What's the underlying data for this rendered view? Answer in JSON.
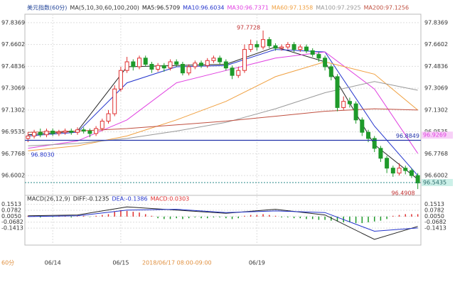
{
  "chart_data": [
    {
      "type": "candlestick",
      "title": "美元指数(60分)",
      "indicator_label": "MA(5,10,30,60,100,200)",
      "up_color": "#e03030",
      "down_color": "#1f9a2a",
      "categories": [
        null,
        null,
        null,
        null,
        "06/14",
        null,
        null,
        null,
        null,
        null,
        null,
        null,
        null,
        null,
        null,
        "06/15",
        null,
        null,
        null,
        null,
        null,
        null,
        null,
        null,
        null,
        null,
        null,
        null,
        null,
        null,
        null,
        null,
        null,
        null,
        null,
        null,
        null,
        "06/19",
        null,
        null,
        null,
        null,
        null,
        null,
        null,
        null,
        null,
        null,
        null,
        null,
        null,
        null,
        null,
        null,
        null,
        null,
        null,
        null,
        null,
        null,
        null,
        null,
        null,
        null
      ],
      "open": [
        96.9,
        96.92,
        96.95,
        96.93,
        96.96,
        96.94,
        96.95,
        96.96,
        96.95,
        96.97,
        96.96,
        96.94,
        96.98,
        97.04,
        97.1,
        97.3,
        97.45,
        97.52,
        97.48,
        97.55,
        97.5,
        97.46,
        97.49,
        97.47,
        97.52,
        97.5,
        97.43,
        97.48,
        97.51,
        97.49,
        97.53,
        97.55,
        97.52,
        97.47,
        97.41,
        97.45,
        97.62,
        97.66,
        97.64,
        97.7,
        97.65,
        97.63,
        97.64,
        97.66,
        97.62,
        97.64,
        97.61,
        97.58,
        97.55,
        97.48,
        97.4,
        97.15,
        97.2,
        97.18,
        97.05,
        96.95,
        96.9,
        96.82,
        96.74,
        96.66,
        96.62,
        96.66,
        96.64,
        96.6
      ],
      "high": [
        96.95,
        96.97,
        96.98,
        96.98,
        96.98,
        96.97,
        96.98,
        96.98,
        96.99,
        96.99,
        96.98,
        97.0,
        97.06,
        97.13,
        97.33,
        97.48,
        97.56,
        97.54,
        97.57,
        97.57,
        97.52,
        97.51,
        97.51,
        97.54,
        97.54,
        97.52,
        97.5,
        97.53,
        97.53,
        97.55,
        97.57,
        97.57,
        97.54,
        97.49,
        97.48,
        97.66,
        97.7,
        97.69,
        97.7728,
        97.72,
        97.67,
        97.66,
        97.68,
        97.68,
        97.66,
        97.66,
        97.63,
        97.6,
        97.57,
        97.5,
        97.42,
        97.24,
        97.23,
        97.2,
        97.07,
        96.97,
        96.92,
        96.84,
        96.76,
        96.68,
        96.7,
        96.68,
        96.66,
        96.62
      ],
      "low": [
        96.87,
        96.9,
        96.91,
        96.91,
        96.92,
        96.92,
        96.93,
        96.93,
        96.93,
        96.94,
        96.91,
        96.92,
        96.96,
        97.02,
        97.08,
        97.28,
        97.43,
        97.45,
        97.46,
        97.48,
        97.43,
        97.44,
        97.44,
        97.45,
        97.48,
        97.41,
        97.41,
        97.46,
        97.47,
        97.47,
        97.51,
        97.5,
        97.45,
        97.38,
        97.39,
        97.43,
        97.6,
        97.61,
        97.62,
        97.63,
        97.61,
        97.61,
        97.62,
        97.6,
        97.6,
        97.59,
        97.56,
        97.52,
        97.45,
        97.37,
        97.12,
        97.13,
        97.15,
        97.02,
        96.92,
        96.87,
        96.79,
        96.71,
        96.62,
        96.59,
        96.6,
        96.61,
        96.58,
        96.4908
      ],
      "close": [
        96.92,
        96.95,
        96.93,
        96.96,
        96.94,
        96.95,
        96.96,
        96.95,
        96.97,
        96.96,
        96.94,
        96.98,
        97.04,
        97.1,
        97.3,
        97.45,
        97.52,
        97.48,
        97.55,
        97.5,
        97.46,
        97.49,
        97.47,
        97.52,
        97.5,
        97.43,
        97.48,
        97.51,
        97.49,
        97.53,
        97.55,
        97.52,
        97.47,
        97.41,
        97.45,
        97.62,
        97.66,
        97.64,
        97.7,
        97.65,
        97.63,
        97.64,
        97.66,
        97.62,
        97.64,
        97.61,
        97.58,
        97.55,
        97.48,
        97.4,
        97.15,
        97.2,
        97.18,
        97.05,
        96.95,
        96.9,
        96.82,
        96.74,
        96.66,
        96.62,
        96.66,
        96.64,
        96.6,
        96.54
      ],
      "series": [
        {
          "name": "MA5:96.5709",
          "color": "#222222",
          "x": [
            0,
            8,
            16,
            24,
            32,
            40,
            48,
            56,
            63
          ],
          "values": [
            96.93,
            96.96,
            97.48,
            97.49,
            97.5,
            97.64,
            97.52,
            96.85,
            96.57
          ]
        },
        {
          "name": "MA10:96.6034",
          "color": "#2233cc",
          "x": [
            0,
            8,
            16,
            24,
            32,
            40,
            48,
            56,
            63
          ],
          "values": [
            96.92,
            96.95,
            97.35,
            97.48,
            97.49,
            97.62,
            97.6,
            97.0,
            96.6
          ]
        },
        {
          "name": "MA30:96.7371",
          "color": "#e040e0",
          "x": [
            0,
            8,
            16,
            24,
            32,
            40,
            48,
            56,
            63
          ],
          "values": [
            96.82,
            96.88,
            97.05,
            97.35,
            97.45,
            97.55,
            97.6,
            97.3,
            96.78
          ]
        },
        {
          "name": "MA60:97.1358",
          "color": "#f0a040",
          "x": [
            0,
            8,
            16,
            24,
            32,
            40,
            48,
            56,
            63
          ],
          "values": [
            96.8,
            96.84,
            96.92,
            97.05,
            97.2,
            97.4,
            97.52,
            97.42,
            97.13
          ]
        },
        {
          "name": "MA100:97.2925",
          "color": "#999999",
          "x": [
            0,
            8,
            16,
            24,
            32,
            40,
            48,
            56,
            63
          ],
          "values": [
            96.84,
            96.86,
            96.9,
            96.96,
            97.03,
            97.14,
            97.27,
            97.36,
            97.29
          ]
        },
        {
          "name": "MA200:97.1256",
          "color": "#c05040",
          "x": [
            0,
            8,
            16,
            24,
            32,
            40,
            48,
            56,
            63
          ],
          "values": [
            96.95,
            96.96,
            96.98,
            97.01,
            97.04,
            97.08,
            97.12,
            97.14,
            97.13
          ]
        }
      ],
      "ylim": [
        96.48,
        97.905
      ],
      "yticks": [
        97.8369,
        97.6602,
        97.4836,
        97.3069,
        97.1302,
        96.9535,
        96.7768,
        96.6002
      ],
      "grid": true,
      "hline": {
        "value": 96.8849,
        "color": "#2233aa"
      },
      "price_line": {
        "value": 96.5435,
        "color": "#2a8a8a"
      },
      "right_tag": {
        "value": 96.9269,
        "color": "#e040e0"
      },
      "annotations": [
        {
          "value": 97.7728,
          "index": 38
        },
        {
          "value": 96.4908,
          "index": 63
        },
        {
          "value": {
            "value": 96.803,
            "label": "96.8030"
          },
          "index": 0
        }
      ],
      "crosshair_label": "2018/06/17 08:00-09:00",
      "period_label": "60分"
    },
    {
      "type": "macd",
      "title": "MACD(26,12,9)",
      "up_color": "#e03030",
      "down_color": "#1f9a2a",
      "histogram": {
        "name": "MACD:0.0303",
        "values": [
          0.01,
          0.01,
          -0.01,
          0.005,
          -0.005,
          0.01,
          0.005,
          -0.01,
          0.005,
          0.01,
          -0.005,
          0.01,
          0.02,
          0.03,
          0.06,
          0.08,
          0.07,
          0.06,
          0.05,
          0.03,
          0.01,
          -0.02,
          -0.03,
          -0.03,
          -0.02,
          -0.03,
          -0.02,
          -0.01,
          -0.02,
          -0.02,
          -0.01,
          -0.01,
          -0.02,
          -0.03,
          -0.02,
          0.01,
          0.02,
          0.02,
          0.03,
          0.02,
          0.01,
          -0.01,
          -0.01,
          -0.02,
          -0.02,
          -0.03,
          -0.03,
          -0.04,
          -0.04,
          -0.05,
          -0.06,
          -0.07,
          -0.07,
          -0.08,
          -0.08,
          -0.07,
          -0.06,
          -0.05,
          -0.03,
          0.01,
          0.02,
          0.03,
          0.03,
          0.03
        ]
      },
      "series": [
        {
          "name": "DIFF:-0.1235",
          "color": "#222222",
          "x": [
            0,
            8,
            16,
            24,
            32,
            40,
            48,
            56,
            63
          ],
          "values": [
            0.01,
            0.02,
            0.12,
            0.08,
            0.04,
            0.09,
            0.02,
            -0.28,
            -0.12
          ]
        },
        {
          "name": "DEA:-0.1386",
          "color": "#2233cc",
          "x": [
            0,
            8,
            16,
            24,
            32,
            40,
            48,
            56,
            63
          ],
          "values": [
            0.0,
            0.01,
            0.08,
            0.09,
            0.05,
            0.07,
            0.05,
            -0.18,
            -0.14
          ]
        }
      ],
      "ylim": [
        -0.35,
        0.2
      ],
      "yticks": [
        0.1513,
        0.0782,
        {
          "value": 0.005,
          "label": "0.0050"
        },
        -0.0682,
        -0.1413
      ]
    }
  ]
}
